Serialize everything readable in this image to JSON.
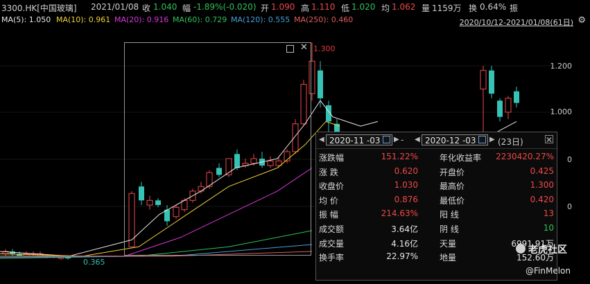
{
  "header": {
    "code": "3300.HK[中国玻璃]",
    "date": "2021/01/08",
    "close_label": "收",
    "close_value": "1.040",
    "change_label": "幅",
    "change_value": "-1.89%(-0.020)",
    "open_label": "开",
    "open_value": "1.090",
    "high_label": "高",
    "high_value": "1.110",
    "low_label": "低",
    "low_value": "1.020",
    "avg_label": "均",
    "avg_value": "1.062",
    "vol_label": "量",
    "vol_value": "1159万",
    "turnover_label": "换",
    "turnover_value": "0.64%",
    "amp_label": "振"
  },
  "ma": {
    "ma5": "MA(5): 1.050",
    "ma10": "MA(10): 0.961",
    "ma20": "MA(20): 0.916",
    "ma60": "MA(60): 0.729",
    "ma120": "MA(120): 0.555",
    "ma250": "MA(250): 0.460",
    "range": "2020/10/12-2021/01/08(61日)"
  },
  "axis": {
    "labels": [
      "1.200",
      "1.000",
      "0",
      "0"
    ]
  },
  "annotations": {
    "high": "1.300",
    "low": "0.365"
  },
  "colors": {
    "up": "#f04848",
    "down": "#36c2b4",
    "ma5": "#e8e8e8",
    "ma10": "#f0d23c",
    "ma20": "#d838d8",
    "ma60": "#2fc25b",
    "ma120": "#46a0d8",
    "ma250": "#e35b5b"
  },
  "popup": {
    "start_date": "2020-11 -03",
    "end_date": "2020-12 -03",
    "dash": "-",
    "days": "(23日)",
    "rows": [
      {
        "l1": "涨跌幅",
        "v1": "151.22%",
        "l2": "年化收益率",
        "v2": "2230420.27%"
      },
      {
        "l1": "涨    跌",
        "v1": "0.620",
        "l2": "开盘价",
        "v2": "0.425"
      },
      {
        "l1": "收盘价",
        "v1": "1.030",
        "l2": "最高价",
        "v2": "1.300"
      },
      {
        "l1": "均    价",
        "v1": "0.876",
        "l2": "最低价",
        "v2": "0.420"
      },
      {
        "l1": "振    幅",
        "v1": "214.63%",
        "l2": "阳    线",
        "v2": "13"
      },
      {
        "l1": "成交额",
        "v1": "3.64亿",
        "l2": "阴    线",
        "v2": "10"
      },
      {
        "l1": "成交量",
        "v1": "4.16亿",
        "l2": "天量",
        "v2": "6991.91万"
      },
      {
        "l1": "换手率",
        "v1": "22.97%",
        "l2": "地量",
        "v2": "152.60万"
      }
    ]
  },
  "watermark": {
    "site": "老虎社区",
    "user": "@FinMelon"
  },
  "chart_data": {
    "type": "candlestick",
    "range_high": 1.3,
    "range_low": 0.365,
    "candles": [
      {
        "o": 0.39,
        "c": 0.4,
        "h": 0.41,
        "l": 0.38
      },
      {
        "o": 0.4,
        "c": 0.39,
        "h": 0.41,
        "l": 0.38
      },
      {
        "o": 0.39,
        "c": 0.38,
        "h": 0.4,
        "l": 0.38
      },
      {
        "o": 0.38,
        "c": 0.39,
        "h": 0.4,
        "l": 0.375
      },
      {
        "o": 0.39,
        "c": 0.39,
        "h": 0.4,
        "l": 0.38
      },
      {
        "o": 0.38,
        "c": 0.39,
        "h": 0.4,
        "l": 0.38
      },
      {
        "o": 0.38,
        "c": 0.38,
        "h": 0.385,
        "l": 0.37
      },
      {
        "o": 0.375,
        "c": 0.38,
        "h": 0.385,
        "l": 0.37
      },
      {
        "o": 0.37,
        "c": 0.375,
        "h": 0.38,
        "l": 0.365
      },
      {
        "o": 0.375,
        "c": 0.37,
        "h": 0.38,
        "l": 0.365
      },
      {
        "o": 0.42,
        "c": 0.65,
        "h": 0.66,
        "l": 0.42
      },
      {
        "o": 0.68,
        "c": 0.62,
        "h": 0.7,
        "l": 0.6
      },
      {
        "o": 0.6,
        "c": 0.62,
        "h": 0.64,
        "l": 0.58
      },
      {
        "o": 0.62,
        "c": 0.6,
        "h": 0.63,
        "l": 0.59
      },
      {
        "o": 0.58,
        "c": 0.53,
        "h": 0.6,
        "l": 0.51
      },
      {
        "o": 0.55,
        "c": 0.59,
        "h": 0.6,
        "l": 0.54
      },
      {
        "o": 0.58,
        "c": 0.62,
        "h": 0.63,
        "l": 0.57
      },
      {
        "o": 0.62,
        "c": 0.66,
        "h": 0.67,
        "l": 0.61
      },
      {
        "o": 0.66,
        "c": 0.68,
        "h": 0.7,
        "l": 0.65
      },
      {
        "o": 0.68,
        "c": 0.74,
        "h": 0.75,
        "l": 0.67
      },
      {
        "o": 0.76,
        "c": 0.73,
        "h": 0.78,
        "l": 0.72
      },
      {
        "o": 0.73,
        "c": 0.8,
        "h": 0.8,
        "l": 0.72
      },
      {
        "o": 0.82,
        "c": 0.76,
        "h": 0.84,
        "l": 0.75
      },
      {
        "o": 0.77,
        "c": 0.78,
        "h": 0.8,
        "l": 0.76
      },
      {
        "o": 0.78,
        "c": 0.8,
        "h": 0.82,
        "l": 0.77
      },
      {
        "o": 0.8,
        "c": 0.77,
        "h": 0.83,
        "l": 0.76
      },
      {
        "o": 0.77,
        "c": 0.79,
        "h": 0.81,
        "l": 0.76
      },
      {
        "o": 0.77,
        "c": 0.79,
        "h": 0.81,
        "l": 0.76
      },
      {
        "o": 0.79,
        "c": 0.83,
        "h": 0.84,
        "l": 0.78
      },
      {
        "o": 0.83,
        "c": 0.95,
        "h": 0.97,
        "l": 0.82
      },
      {
        "o": 0.95,
        "c": 1.12,
        "h": 1.14,
        "l": 0.94
      },
      {
        "o": 1.08,
        "c": 1.22,
        "h": 1.3,
        "l": 1.05
      },
      {
        "o": 1.18,
        "c": 1.06,
        "h": 1.22,
        "l": 1.02
      },
      {
        "o": 1.03,
        "c": 0.96,
        "h": 1.05,
        "l": 0.9
      },
      {
        "o": 0.95,
        "c": 0.9,
        "h": 0.97,
        "l": 0.88
      },
      {
        "o": 1.1,
        "c": 1.18,
        "h": 1.2,
        "l": 0.9
      },
      {
        "o": 1.18,
        "c": 1.08,
        "h": 1.2,
        "l": 1.06
      },
      {
        "o": 1.05,
        "c": 0.98,
        "h": 1.06,
        "l": 0.96
      },
      {
        "o": 1.0,
        "c": 1.06,
        "h": 1.07,
        "l": 0.97
      },
      {
        "o": 1.09,
        "c": 1.04,
        "h": 1.11,
        "l": 1.02
      }
    ]
  }
}
